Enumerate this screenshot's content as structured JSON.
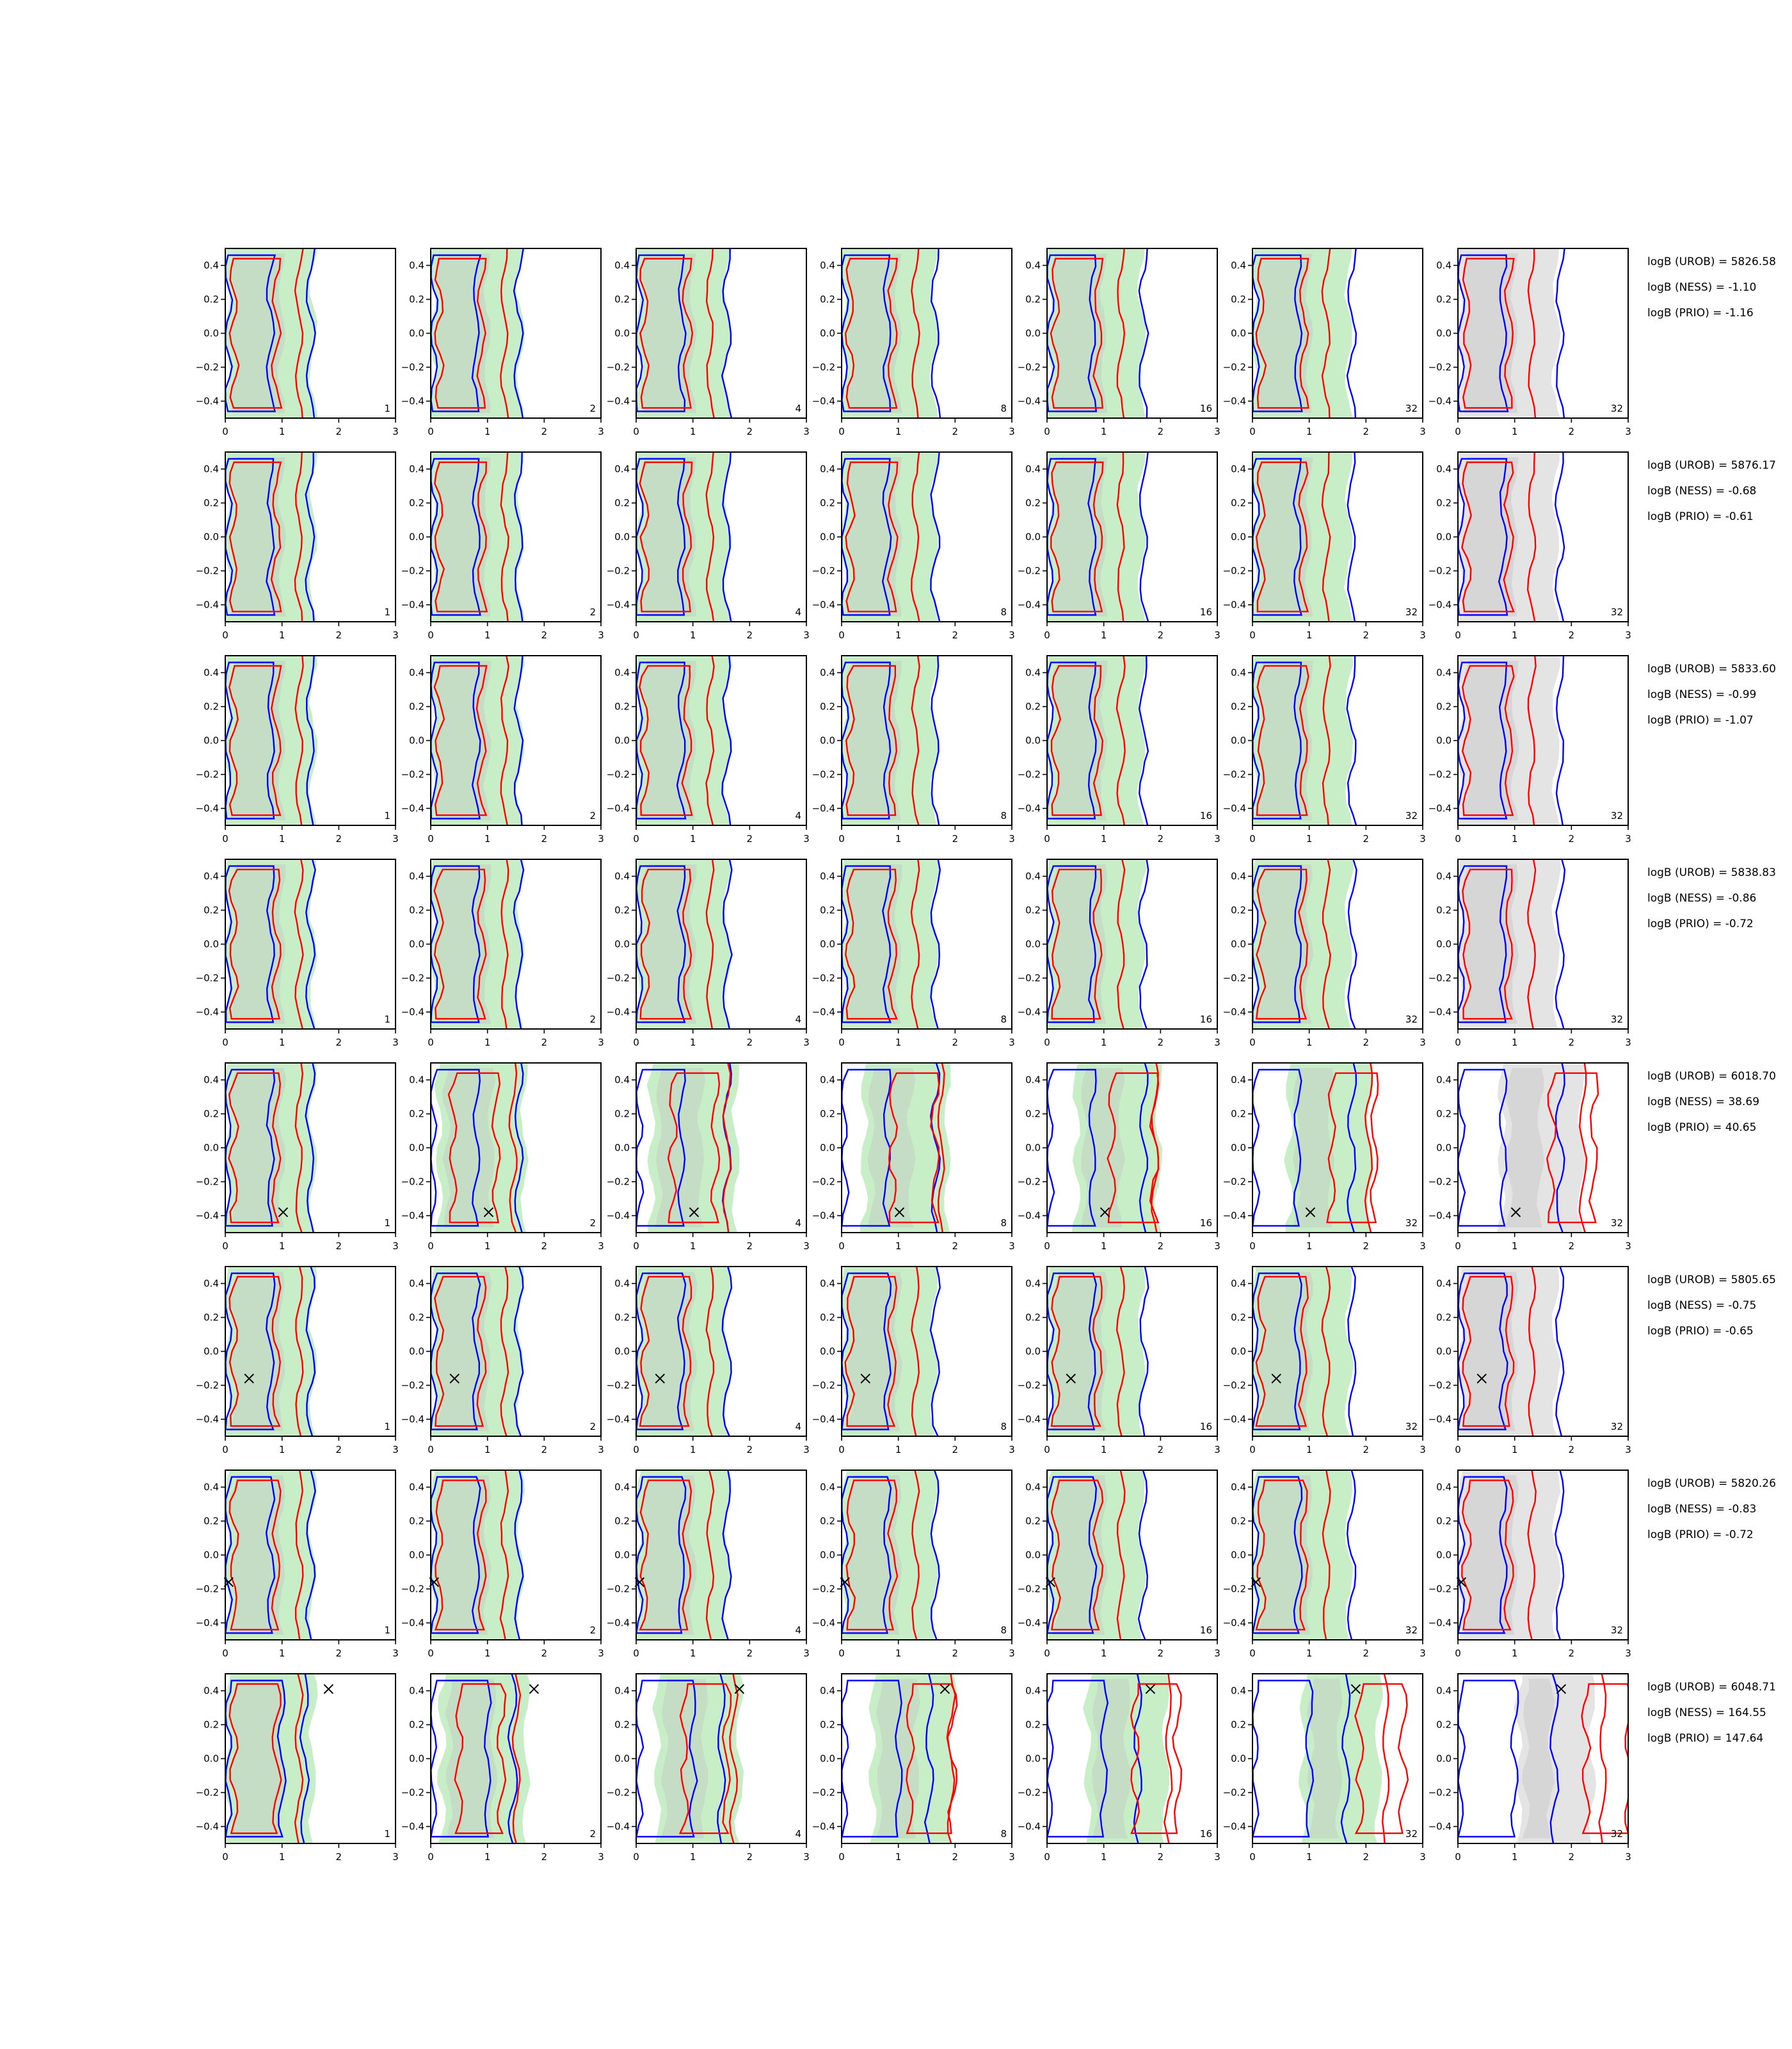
{
  "figure": {
    "panel_ticks": {
      "x": [
        "0",
        "1",
        "2",
        "3"
      ],
      "y": [
        "0.4",
        "0.2",
        "0.0",
        "−0.2",
        "−0.4"
      ]
    }
  },
  "chart_data": {
    "type": "contour-grid",
    "grid": {
      "rows": 8,
      "cols": 7
    },
    "column_labels": [
      "1",
      "2",
      "4",
      "8",
      "16",
      "32",
      "32"
    ],
    "xlim": [
      0,
      3
    ],
    "ylim": [
      -0.5,
      0.5
    ],
    "xticks": [
      0,
      1,
      2,
      3
    ],
    "yticks": [
      -0.4,
      -0.2,
      0.0,
      0.2,
      0.4
    ],
    "colors": {
      "blue_contour": "#0000ff",
      "red_contour": "#ff0000",
      "green_fill": "#c8eec8",
      "gray_fill": "#e4e4e4",
      "marker": "#000000"
    },
    "rows": [
      {
        "marker": null,
        "annotations": [
          "logB (UROB) = 5826.58",
          "logB (NESS) = -1.10",
          "logB (PRIO) = -1.16"
        ]
      },
      {
        "marker": null,
        "annotations": [
          "logB (UROB) = 5876.17",
          "logB (NESS) = -0.68",
          "logB (PRIO) = -0.61"
        ]
      },
      {
        "marker": null,
        "annotations": [
          "logB (UROB) = 5833.60",
          "logB (NESS) = -0.99",
          "logB (PRIO) = -1.07"
        ]
      },
      {
        "marker": null,
        "annotations": [
          "logB (UROB) = 5838.83",
          "logB (NESS) = -0.86",
          "logB (PRIO) = -0.72"
        ]
      },
      {
        "marker": {
          "x": 1.02,
          "y": -0.38
        },
        "annotations": [
          "logB (UROB) = 6018.70",
          "logB (NESS) = 38.69",
          "logB (PRIO) = 40.65"
        ]
      },
      {
        "marker": {
          "x": 0.42,
          "y": -0.16
        },
        "annotations": [
          "logB (UROB) = 5805.65",
          "logB (NESS) = -0.75",
          "logB (PRIO) = -0.65"
        ]
      },
      {
        "marker": {
          "x": 0.06,
          "y": -0.16
        },
        "annotations": [
          "logB (UROB) = 5820.26",
          "logB (NESS) = -0.83",
          "logB (PRIO) = -0.72"
        ]
      },
      {
        "marker": {
          "x": 1.82,
          "y": 0.41
        },
        "annotations": [
          "logB (UROB) = 6048.71",
          "logB (NESS) = 164.55",
          "logB (PRIO) = 147.64"
        ]
      }
    ]
  }
}
